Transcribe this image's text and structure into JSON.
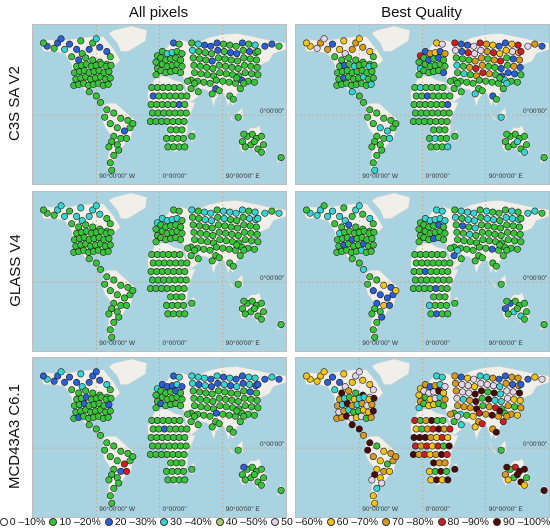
{
  "columns": [
    "All pixels",
    "Best Quality"
  ],
  "rows": [
    "C3S SA V2",
    "GLASS V4",
    "MCD43A3 C6.1"
  ],
  "map": {
    "lon_labels": [
      "90°00'00\" W",
      "0°00'00\"",
      "90°00'00\" E"
    ],
    "lat_label": "0°00'00\"",
    "water_color": "#a9d3e0",
    "land_color": "#f1efe9"
  },
  "legend": [
    {
      "label": "0 –10%",
      "color": "#ffffff"
    },
    {
      "label": "10 –20%",
      "color": "#3ac33a"
    },
    {
      "label": "20 –30%",
      "color": "#2a5fd6"
    },
    {
      "label": "30 –40%",
      "color": "#37d3cf"
    },
    {
      "label": "40 –50%",
      "color": "#a8cf70"
    },
    {
      "label": "50 –60%",
      "color": "#e2d5ea"
    },
    {
      "label": "60 –70%",
      "color": "#f0c419"
    },
    {
      "label": "70 –80%",
      "color": "#d89a1c"
    },
    {
      "label": "80 –90%",
      "color": "#cc1f1f"
    },
    {
      "label": "90 –100%",
      "color": "#4a0b0b"
    }
  ]
}
